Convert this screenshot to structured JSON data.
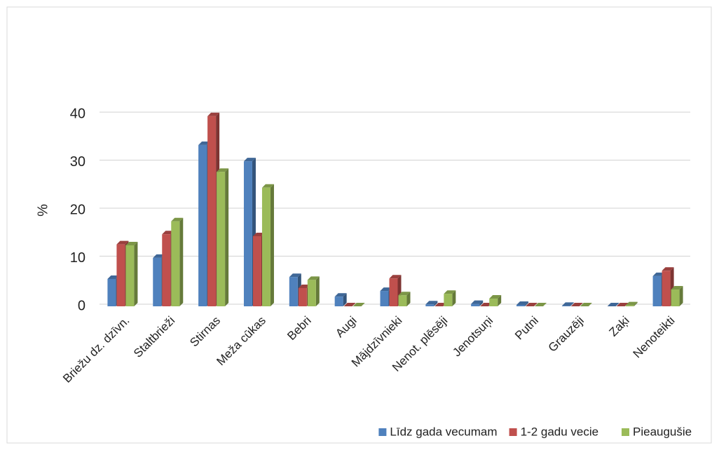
{
  "chart_data": {
    "type": "bar3d",
    "y_label": "%",
    "categories": [
      "Briežu dz. dzīvn.",
      "Staltbrieži",
      "Stirnas",
      "Meža cūkas",
      "Bebri",
      "Augi",
      "Mājdzīvnieki",
      "Nenot. plēsēji",
      "Jenotsuņi",
      "Putni",
      "Grauzēji",
      "Zaķi",
      "Nenoteikti"
    ],
    "series": [
      {
        "name": "Līdz gada vecumam",
        "color": "#4f81bd",
        "values": [
          5.7,
          10.1,
          33.6,
          30.2,
          6.1,
          2.0,
          3.2,
          0.4,
          0.5,
          0.3,
          0.1,
          0,
          6.3
        ]
      },
      {
        "name": "1-2 gadu vecie",
        "color": "#c0504d",
        "values": [
          12.9,
          15.0,
          39.6,
          14.6,
          3.8,
          0,
          5.8,
          0,
          0,
          0,
          0,
          0,
          7.4
        ]
      },
      {
        "name": "Pieaugušie",
        "color": "#9bbb59",
        "values": [
          12.7,
          17.7,
          28.0,
          24.7,
          5.5,
          0,
          2.3,
          2.6,
          1.6,
          0,
          0,
          0.2,
          3.5
        ]
      }
    ],
    "ylim": [
      0,
      40
    ],
    "yticks": [
      0,
      10,
      20,
      30,
      40
    ],
    "grid": true,
    "legend": "bottom-right"
  }
}
